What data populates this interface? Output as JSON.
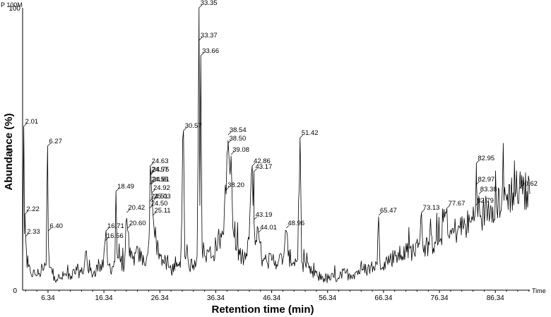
{
  "chart_data": {
    "type": "line",
    "corner_label": "P 100M",
    "xlabel": "Retention time (min)",
    "ylabel": "Abundance (%)",
    "x_axis_tag": "Time",
    "y_mid_tag": "%",
    "xlim": [
      1.8,
      92.5
    ],
    "ylim": [
      0,
      100
    ],
    "x_ticks": [
      "6.34",
      "16.34",
      "26.34",
      "36.34",
      "46.34",
      "56.34",
      "66.34",
      "76.34",
      "86.34"
    ],
    "y_ticks": [
      "100",
      "0"
    ],
    "series": [
      {
        "values": [
          [
            1.8,
            8.0
          ],
          [
            2.01,
            58.0
          ],
          [
            2.15,
            20.0
          ],
          [
            2.22,
            27.0
          ],
          [
            2.33,
            19.0
          ],
          [
            2.6,
            8.0
          ],
          [
            3.2,
            6.5
          ],
          [
            4.0,
            5.5
          ],
          [
            4.8,
            6.0
          ],
          [
            5.6,
            7.5
          ],
          [
            6.0,
            9.0
          ],
          [
            6.27,
            51.0
          ],
          [
            6.4,
            17.0
          ],
          [
            6.6,
            8.0
          ],
          [
            7.5,
            5.0
          ],
          [
            8.5,
            4.0
          ],
          [
            9.5,
            5.5
          ],
          [
            10.5,
            5.0
          ],
          [
            11.5,
            7.0
          ],
          [
            12.5,
            6.0
          ],
          [
            13.2,
            14.0
          ],
          [
            13.5,
            7.0
          ],
          [
            14.5,
            6.0
          ],
          [
            15.5,
            9.0
          ],
          [
            16.2,
            8.0
          ],
          [
            16.56,
            17.5
          ],
          [
            16.71,
            21.0
          ],
          [
            17.0,
            9.0
          ],
          [
            17.8,
            8.0
          ],
          [
            18.3,
            10.0
          ],
          [
            18.49,
            35.0
          ],
          [
            18.7,
            13.0
          ],
          [
            19.3,
            10.0
          ],
          [
            20.0,
            9.0
          ],
          [
            20.42,
            25.5
          ],
          [
            20.6,
            21.0
          ],
          [
            20.9,
            12.0
          ],
          [
            21.5,
            11.0
          ],
          [
            22.5,
            13.0
          ],
          [
            23.5,
            10.0
          ],
          [
            24.2,
            13.0
          ],
          [
            24.4,
            18.0
          ],
          [
            24.5,
            24.0
          ],
          [
            24.51,
            28.0
          ],
          [
            24.55,
            35.0
          ],
          [
            24.57,
            38.0
          ],
          [
            24.63,
            44.0
          ],
          [
            24.75,
            41.0
          ],
          [
            24.81,
            37.0
          ],
          [
            24.92,
            34.0
          ],
          [
            25.03,
            30.0
          ],
          [
            25.11,
            27.0
          ],
          [
            25.3,
            22.0
          ],
          [
            25.7,
            17.0
          ],
          [
            26.3,
            13.0
          ],
          [
            27.0,
            10.0
          ],
          [
            28.0,
            8.0
          ],
          [
            29.0,
            7.0
          ],
          [
            30.0,
            8.0
          ],
          [
            30.57,
            56.5
          ],
          [
            30.8,
            12.0
          ],
          [
            31.5,
            9.0
          ],
          [
            32.3,
            9.0
          ],
          [
            33.0,
            12.0
          ],
          [
            33.35,
            100.0
          ],
          [
            33.37,
            83.5
          ],
          [
            33.5,
            30.0
          ],
          [
            33.66,
            83.0
          ],
          [
            33.9,
            15.0
          ],
          [
            34.5,
            12.0
          ],
          [
            35.2,
            14.0
          ],
          [
            35.8,
            12.0
          ],
          [
            36.4,
            16.0
          ],
          [
            37.0,
            18.0
          ],
          [
            37.6,
            20.0
          ],
          [
            37.9,
            30.0
          ],
          [
            38.2,
            34.0
          ],
          [
            38.5,
            50.0
          ],
          [
            38.54,
            53.0
          ],
          [
            38.9,
            41.0
          ],
          [
            39.08,
            47.5
          ],
          [
            39.4,
            22.0
          ],
          [
            40.0,
            14.0
          ],
          [
            41.0,
            12.0
          ],
          [
            41.8,
            13.0
          ],
          [
            42.3,
            18.0
          ],
          [
            42.86,
            44.0
          ],
          [
            43.0,
            30.0
          ],
          [
            43.17,
            42.0
          ],
          [
            43.19,
            24.0
          ],
          [
            43.4,
            16.0
          ],
          [
            44.01,
            20.0
          ],
          [
            44.5,
            12.0
          ],
          [
            45.5,
            10.0
          ],
          [
            46.5,
            11.0
          ],
          [
            47.5,
            10.0
          ],
          [
            48.5,
            12.0
          ],
          [
            48.96,
            21.0
          ],
          [
            49.3,
            12.0
          ],
          [
            50.3,
            10.0
          ],
          [
            51.0,
            11.0
          ],
          [
            51.42,
            54.0
          ],
          [
            51.7,
            10.0
          ],
          [
            52.5,
            8.0
          ],
          [
            53.5,
            6.0
          ],
          [
            54.5,
            5.0
          ],
          [
            55.5,
            4.5
          ],
          [
            56.5,
            4.0
          ],
          [
            57.5,
            4.5
          ],
          [
            58.5,
            5.0
          ],
          [
            59.5,
            6.0
          ],
          [
            60.5,
            5.5
          ],
          [
            61.5,
            6.5
          ],
          [
            62.5,
            7.0
          ],
          [
            63.5,
            7.5
          ],
          [
            64.5,
            8.5
          ],
          [
            65.2,
            9.0
          ],
          [
            65.47,
            26.0
          ],
          [
            65.7,
            10.0
          ],
          [
            66.5,
            10.0
          ],
          [
            67.5,
            11.0
          ],
          [
            68.5,
            12.0
          ],
          [
            69.5,
            12.5
          ],
          [
            70.5,
            13.5
          ],
          [
            71.5,
            14.0
          ],
          [
            72.5,
            15.0
          ],
          [
            73.13,
            27.5
          ],
          [
            73.4,
            15.0
          ],
          [
            74.5,
            16.0
          ],
          [
            75.5,
            17.0
          ],
          [
            76.5,
            18.0
          ],
          [
            77.67,
            29.0
          ],
          [
            78.0,
            19.0
          ],
          [
            79.0,
            21.0
          ],
          [
            80.0,
            22.0
          ],
          [
            81.0,
            23.0
          ],
          [
            82.0,
            24.0
          ],
          [
            82.79,
            28.5
          ],
          [
            82.95,
            45.0
          ],
          [
            82.97,
            38.0
          ],
          [
            83.2,
            26.0
          ],
          [
            83.38,
            33.5
          ],
          [
            83.6,
            26.0
          ],
          [
            84.5,
            28.0
          ],
          [
            85.5,
            30.0
          ],
          [
            86.5,
            31.0
          ],
          [
            87.5,
            32.0
          ],
          [
            88.5,
            34.0
          ],
          [
            89.5,
            34.5
          ],
          [
            90.62,
            36.0
          ],
          [
            91.2,
            34.0
          ],
          [
            92.0,
            35.0
          ],
          [
            92.5,
            34.0
          ]
        ]
      }
    ],
    "peak_labels": [
      {
        "text": "2.01",
        "x": 2.01,
        "y": 58.0
      },
      {
        "text": "2.22",
        "x": 2.22,
        "y": 27.0
      },
      {
        "text": "2.33",
        "x": 2.33,
        "y": 19.0
      },
      {
        "text": "6.27",
        "x": 6.27,
        "y": 51.0
      },
      {
        "text": "6.40",
        "x": 6.4,
        "y": 21.0
      },
      {
        "text": "16.71",
        "x": 16.71,
        "y": 21.0
      },
      {
        "text": "16.56",
        "x": 16.56,
        "y": 17.5
      },
      {
        "text": "18.49",
        "x": 18.49,
        "y": 35.0
      },
      {
        "text": "20.42",
        "x": 20.42,
        "y": 27.5
      },
      {
        "text": "20.60",
        "x": 20.6,
        "y": 22.0
      },
      {
        "text": "24.63",
        "x": 24.63,
        "y": 44.0
      },
      {
        "text": "24.57",
        "x": 24.57,
        "y": 41.0
      },
      {
        "text": "24.75",
        "x": 24.75,
        "y": 41.0
      },
      {
        "text": "24.55",
        "x": 24.55,
        "y": 37.5
      },
      {
        "text": "24.81",
        "x": 24.81,
        "y": 37.5
      },
      {
        "text": "24.92",
        "x": 24.92,
        "y": 34.5
      },
      {
        "text": "24.51",
        "x": 24.51,
        "y": 31.5
      },
      {
        "text": "25.03",
        "x": 25.03,
        "y": 31.5
      },
      {
        "text": "24.50",
        "x": 24.5,
        "y": 29.0
      },
      {
        "text": "25.11",
        "x": 25.11,
        "y": 26.5
      },
      {
        "text": "30.57",
        "x": 30.57,
        "y": 56.5
      },
      {
        "text": "33.35",
        "x": 33.35,
        "y": 100.0
      },
      {
        "text": "33.37",
        "x": 33.37,
        "y": 88.5
      },
      {
        "text": "33.66",
        "x": 33.66,
        "y": 83.0
      },
      {
        "text": "38.54",
        "x": 38.54,
        "y": 55.0
      },
      {
        "text": "38.50",
        "x": 38.5,
        "y": 52.0
      },
      {
        "text": "39.08",
        "x": 39.08,
        "y": 48.0
      },
      {
        "text": "38.20",
        "x": 38.2,
        "y": 35.5
      },
      {
        "text": "42.86",
        "x": 42.86,
        "y": 44.0
      },
      {
        "text": "43.17",
        "x": 43.17,
        "y": 42.0
      },
      {
        "text": "43.19",
        "x": 43.19,
        "y": 25.0
      },
      {
        "text": "44.01",
        "x": 44.01,
        "y": 20.5
      },
      {
        "text": "48.96",
        "x": 48.96,
        "y": 22.0
      },
      {
        "text": "51.42",
        "x": 51.42,
        "y": 54.0
      },
      {
        "text": "65.47",
        "x": 65.47,
        "y": 26.5
      },
      {
        "text": "73.13",
        "x": 73.13,
        "y": 27.5
      },
      {
        "text": "77.67",
        "x": 77.67,
        "y": 29.0
      },
      {
        "text": "82.79",
        "x": 82.79,
        "y": 30.0
      },
      {
        "text": "82.95",
        "x": 82.95,
        "y": 45.0
      },
      {
        "text": "82.97",
        "x": 82.97,
        "y": 37.5
      },
      {
        "text": "83.38",
        "x": 83.38,
        "y": 34.0
      },
      {
        "text": "90.62",
        "x": 90.62,
        "y": 36.0
      }
    ],
    "grid": false,
    "line_color": "#000000"
  }
}
